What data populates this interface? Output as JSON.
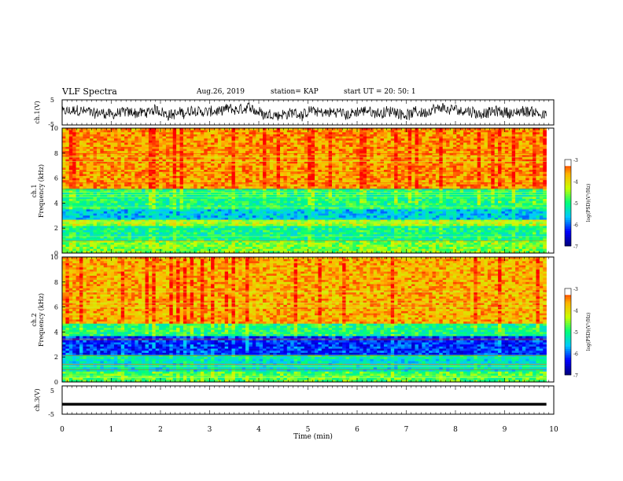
{
  "header": {
    "title": "VLF Spectra",
    "date": "Aug.26, 2019",
    "station": "station= KAP",
    "start": "start  UT  =   20: 50: 1"
  },
  "chart_data": [
    {
      "type": "line",
      "name": "ch1-waveform",
      "ylabel": "ch.1(V)",
      "ylim": [
        -5,
        5
      ],
      "yticks": [
        "5",
        "-5"
      ],
      "xlim": [
        0,
        10
      ],
      "x_range_data": [
        0,
        9.85
      ],
      "description_level": "noisy voltage trace around 0 V spanning about ±4 V"
    },
    {
      "type": "heatmap",
      "name": "ch1-spectrogram",
      "ylabel": "ch.1\nFrequency  (kHz)",
      "ylim": [
        0,
        10
      ],
      "yticks": [
        "0",
        "2",
        "4",
        "6",
        "8",
        "10"
      ],
      "xlim": [
        0,
        10
      ],
      "x_range_data": [
        0,
        9.85
      ],
      "band_levels": [
        {
          "f0": 0,
          "f1": 1,
          "level": -4.6
        },
        {
          "f0": 1,
          "f1": 2.2,
          "level": -5.1
        },
        {
          "f0": 2.2,
          "f1": 2.6,
          "level": -4.4
        },
        {
          "f0": 2.6,
          "f1": 3.5,
          "level": -5.6
        },
        {
          "f0": 3.5,
          "f1": 5.2,
          "level": -5.0
        },
        {
          "f0": 5.2,
          "f1": 10,
          "level": -3.6
        }
      ],
      "colorbar": {
        "label": "log(PSD)(V²/Hz)",
        "ticks": [
          "-3",
          "-4",
          "-5",
          "-6",
          "-7"
        ],
        "range": [
          -7,
          -3
        ]
      }
    },
    {
      "type": "heatmap",
      "name": "ch2-spectrogram",
      "ylabel": "ch.2\nFrequency  (kHz)",
      "ylim": [
        0,
        10
      ],
      "yticks": [
        "0",
        "2",
        "4",
        "6",
        "8",
        "10"
      ],
      "xlim": [
        0,
        10
      ],
      "x_range_data": [
        0,
        9.85
      ],
      "band_levels": [
        {
          "f0": 0,
          "f1": 0.8,
          "level": -4.8
        },
        {
          "f0": 0.8,
          "f1": 1.8,
          "level": -5.4
        },
        {
          "f0": 1.8,
          "f1": 2.2,
          "level": -5.2
        },
        {
          "f0": 2.2,
          "f1": 3.6,
          "level": -6.2
        },
        {
          "f0": 3.6,
          "f1": 4.6,
          "level": -5.0
        },
        {
          "f0": 4.6,
          "f1": 10,
          "level": -3.7
        }
      ],
      "colorbar": {
        "label": "log(PSD)(V²/Hz)",
        "ticks": [
          "-3",
          "-4",
          "-5",
          "-6",
          "-7"
        ],
        "range": [
          -7,
          -3
        ]
      }
    },
    {
      "type": "line",
      "name": "ch3-waveform",
      "ylabel": "ch.3(V)",
      "ylim": [
        -5,
        5
      ],
      "yticks": [
        "5",
        "-5"
      ],
      "xlim": [
        0,
        10
      ],
      "x_range_data": [
        0,
        9.85
      ],
      "constant_value": -1.5
    }
  ],
  "xaxis": {
    "label": "Time  (min)",
    "ticks": [
      "0",
      "1",
      "2",
      "3",
      "4",
      "5",
      "6",
      "7",
      "8",
      "9",
      "10"
    ]
  },
  "colors": {
    "colormap": [
      "#00007a",
      "#0000ff",
      "#00c8ff",
      "#00ff78",
      "#c8ff00",
      "#ffb400",
      "#ff0000",
      "#ffffff"
    ]
  }
}
